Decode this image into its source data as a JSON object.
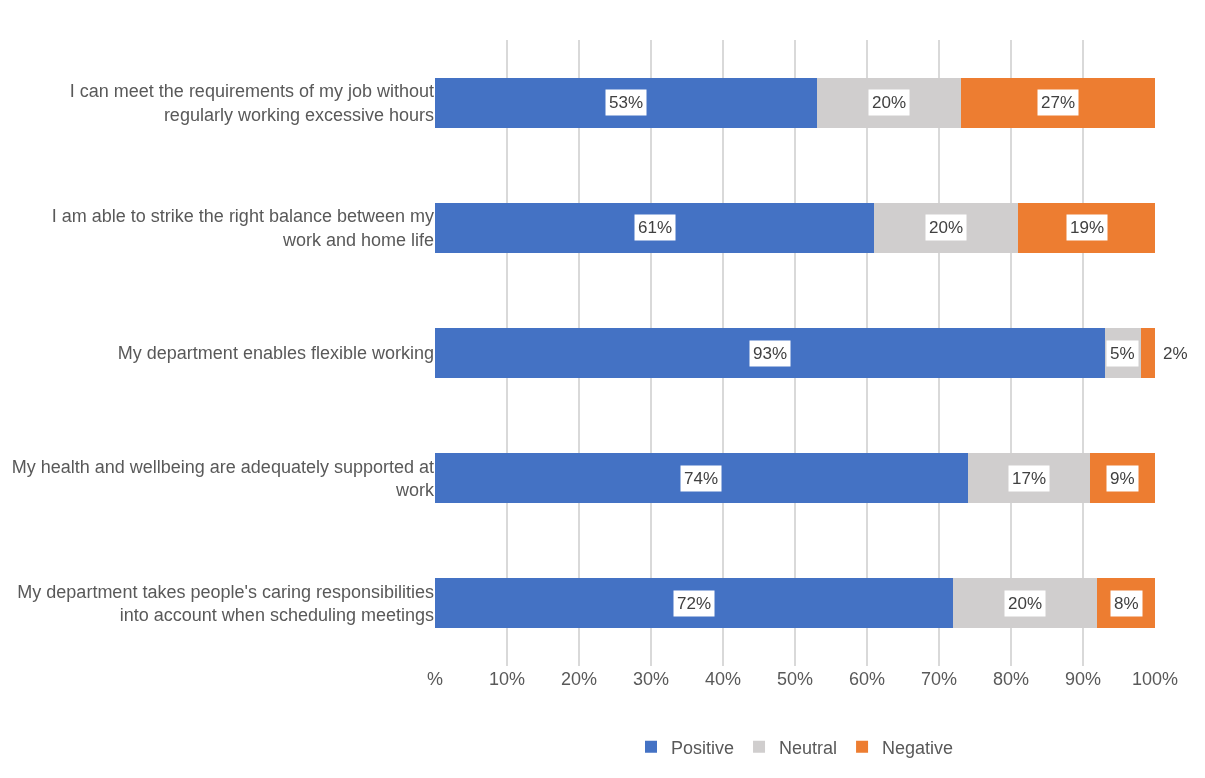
{
  "chart_data": {
    "type": "bar",
    "orientation": "horizontal",
    "stacked": true,
    "categories": [
      "I can meet the requirements of my job without regularly working excessive hours",
      "I am able to strike the right balance between my work and home life",
      "My department enables flexible working",
      "My health and wellbeing are adequately supported at work",
      "My department takes people's caring responsibilities into account when scheduling meetings"
    ],
    "series": [
      {
        "name": "Positive",
        "color": "#4472c4",
        "values": [
          53,
          61,
          93,
          74,
          72
        ],
        "value_labels": [
          "53%",
          "61%",
          "93%",
          "74%",
          "72%"
        ]
      },
      {
        "name": "Neutral",
        "color": "#d0cece",
        "values": [
          20,
          20,
          5,
          17,
          20
        ],
        "value_labels": [
          "20%",
          "20%",
          "5%",
          "17%",
          "20%"
        ]
      },
      {
        "name": "Negative",
        "color": "#ed7d31",
        "values": [
          27,
          19,
          2,
          9,
          8
        ],
        "value_labels": [
          "27%",
          "19%",
          "2%",
          "9%",
          "8%"
        ]
      }
    ],
    "xlim": [
      0,
      100
    ],
    "xticks": [
      {
        "value": 0,
        "label": "%"
      },
      {
        "value": 10,
        "label": "10%"
      },
      {
        "value": 20,
        "label": "20%"
      },
      {
        "value": 30,
        "label": "30%"
      },
      {
        "value": 40,
        "label": "40%"
      },
      {
        "value": 50,
        "label": "50%"
      },
      {
        "value": 60,
        "label": "60%"
      },
      {
        "value": 70,
        "label": "70%"
      },
      {
        "value": 80,
        "label": "80%"
      },
      {
        "value": 90,
        "label": "90%"
      },
      {
        "value": 100,
        "label": "100%"
      }
    ],
    "grid": "x",
    "legend": "bottom"
  }
}
